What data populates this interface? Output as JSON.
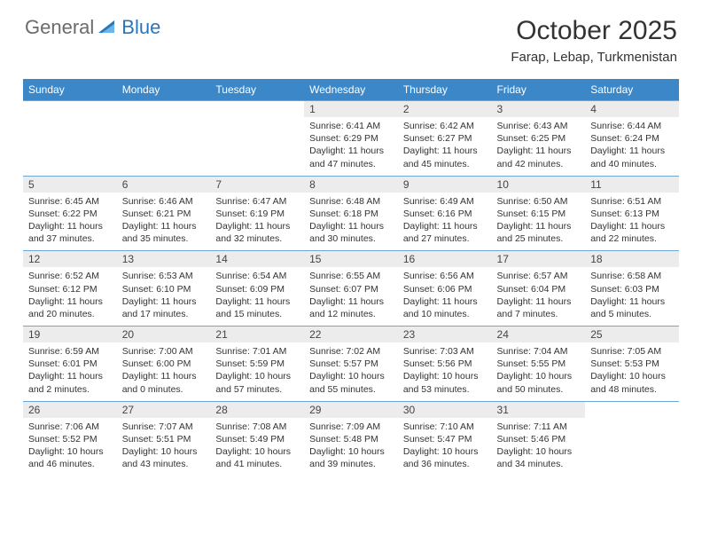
{
  "logo": {
    "text1": "General",
    "text2": "Blue"
  },
  "title": "October 2025",
  "location": "Farap, Lebap, Turkmenistan",
  "colors": {
    "header_bg": "#3b87c8",
    "daynum_bg": "#ececec",
    "row_border": "#6fa6d4",
    "logo_gray": "#6b6b6b",
    "logo_blue": "#2976bb"
  },
  "dayHeaders": [
    "Sunday",
    "Monday",
    "Tuesday",
    "Wednesday",
    "Thursday",
    "Friday",
    "Saturday"
  ],
  "weeks": [
    {
      "nums": [
        "",
        "",
        "",
        "1",
        "2",
        "3",
        "4"
      ],
      "cells": [
        null,
        null,
        null,
        {
          "sunrise": "Sunrise: 6:41 AM",
          "sunset": "Sunset: 6:29 PM",
          "day1": "Daylight: 11 hours",
          "day2": "and 47 minutes."
        },
        {
          "sunrise": "Sunrise: 6:42 AM",
          "sunset": "Sunset: 6:27 PM",
          "day1": "Daylight: 11 hours",
          "day2": "and 45 minutes."
        },
        {
          "sunrise": "Sunrise: 6:43 AM",
          "sunset": "Sunset: 6:25 PM",
          "day1": "Daylight: 11 hours",
          "day2": "and 42 minutes."
        },
        {
          "sunrise": "Sunrise: 6:44 AM",
          "sunset": "Sunset: 6:24 PM",
          "day1": "Daylight: 11 hours",
          "day2": "and 40 minutes."
        }
      ]
    },
    {
      "nums": [
        "5",
        "6",
        "7",
        "8",
        "9",
        "10",
        "11"
      ],
      "cells": [
        {
          "sunrise": "Sunrise: 6:45 AM",
          "sunset": "Sunset: 6:22 PM",
          "day1": "Daylight: 11 hours",
          "day2": "and 37 minutes."
        },
        {
          "sunrise": "Sunrise: 6:46 AM",
          "sunset": "Sunset: 6:21 PM",
          "day1": "Daylight: 11 hours",
          "day2": "and 35 minutes."
        },
        {
          "sunrise": "Sunrise: 6:47 AM",
          "sunset": "Sunset: 6:19 PM",
          "day1": "Daylight: 11 hours",
          "day2": "and 32 minutes."
        },
        {
          "sunrise": "Sunrise: 6:48 AM",
          "sunset": "Sunset: 6:18 PM",
          "day1": "Daylight: 11 hours",
          "day2": "and 30 minutes."
        },
        {
          "sunrise": "Sunrise: 6:49 AM",
          "sunset": "Sunset: 6:16 PM",
          "day1": "Daylight: 11 hours",
          "day2": "and 27 minutes."
        },
        {
          "sunrise": "Sunrise: 6:50 AM",
          "sunset": "Sunset: 6:15 PM",
          "day1": "Daylight: 11 hours",
          "day2": "and 25 minutes."
        },
        {
          "sunrise": "Sunrise: 6:51 AM",
          "sunset": "Sunset: 6:13 PM",
          "day1": "Daylight: 11 hours",
          "day2": "and 22 minutes."
        }
      ]
    },
    {
      "nums": [
        "12",
        "13",
        "14",
        "15",
        "16",
        "17",
        "18"
      ],
      "cells": [
        {
          "sunrise": "Sunrise: 6:52 AM",
          "sunset": "Sunset: 6:12 PM",
          "day1": "Daylight: 11 hours",
          "day2": "and 20 minutes."
        },
        {
          "sunrise": "Sunrise: 6:53 AM",
          "sunset": "Sunset: 6:10 PM",
          "day1": "Daylight: 11 hours",
          "day2": "and 17 minutes."
        },
        {
          "sunrise": "Sunrise: 6:54 AM",
          "sunset": "Sunset: 6:09 PM",
          "day1": "Daylight: 11 hours",
          "day2": "and 15 minutes."
        },
        {
          "sunrise": "Sunrise: 6:55 AM",
          "sunset": "Sunset: 6:07 PM",
          "day1": "Daylight: 11 hours",
          "day2": "and 12 minutes."
        },
        {
          "sunrise": "Sunrise: 6:56 AM",
          "sunset": "Sunset: 6:06 PM",
          "day1": "Daylight: 11 hours",
          "day2": "and 10 minutes."
        },
        {
          "sunrise": "Sunrise: 6:57 AM",
          "sunset": "Sunset: 6:04 PM",
          "day1": "Daylight: 11 hours",
          "day2": "and 7 minutes."
        },
        {
          "sunrise": "Sunrise: 6:58 AM",
          "sunset": "Sunset: 6:03 PM",
          "day1": "Daylight: 11 hours",
          "day2": "and 5 minutes."
        }
      ]
    },
    {
      "nums": [
        "19",
        "20",
        "21",
        "22",
        "23",
        "24",
        "25"
      ],
      "cells": [
        {
          "sunrise": "Sunrise: 6:59 AM",
          "sunset": "Sunset: 6:01 PM",
          "day1": "Daylight: 11 hours",
          "day2": "and 2 minutes."
        },
        {
          "sunrise": "Sunrise: 7:00 AM",
          "sunset": "Sunset: 6:00 PM",
          "day1": "Daylight: 11 hours",
          "day2": "and 0 minutes."
        },
        {
          "sunrise": "Sunrise: 7:01 AM",
          "sunset": "Sunset: 5:59 PM",
          "day1": "Daylight: 10 hours",
          "day2": "and 57 minutes."
        },
        {
          "sunrise": "Sunrise: 7:02 AM",
          "sunset": "Sunset: 5:57 PM",
          "day1": "Daylight: 10 hours",
          "day2": "and 55 minutes."
        },
        {
          "sunrise": "Sunrise: 7:03 AM",
          "sunset": "Sunset: 5:56 PM",
          "day1": "Daylight: 10 hours",
          "day2": "and 53 minutes."
        },
        {
          "sunrise": "Sunrise: 7:04 AM",
          "sunset": "Sunset: 5:55 PM",
          "day1": "Daylight: 10 hours",
          "day2": "and 50 minutes."
        },
        {
          "sunrise": "Sunrise: 7:05 AM",
          "sunset": "Sunset: 5:53 PM",
          "day1": "Daylight: 10 hours",
          "day2": "and 48 minutes."
        }
      ]
    },
    {
      "nums": [
        "26",
        "27",
        "28",
        "29",
        "30",
        "31",
        ""
      ],
      "cells": [
        {
          "sunrise": "Sunrise: 7:06 AM",
          "sunset": "Sunset: 5:52 PM",
          "day1": "Daylight: 10 hours",
          "day2": "and 46 minutes."
        },
        {
          "sunrise": "Sunrise: 7:07 AM",
          "sunset": "Sunset: 5:51 PM",
          "day1": "Daylight: 10 hours",
          "day2": "and 43 minutes."
        },
        {
          "sunrise": "Sunrise: 7:08 AM",
          "sunset": "Sunset: 5:49 PM",
          "day1": "Daylight: 10 hours",
          "day2": "and 41 minutes."
        },
        {
          "sunrise": "Sunrise: 7:09 AM",
          "sunset": "Sunset: 5:48 PM",
          "day1": "Daylight: 10 hours",
          "day2": "and 39 minutes."
        },
        {
          "sunrise": "Sunrise: 7:10 AM",
          "sunset": "Sunset: 5:47 PM",
          "day1": "Daylight: 10 hours",
          "day2": "and 36 minutes."
        },
        {
          "sunrise": "Sunrise: 7:11 AM",
          "sunset": "Sunset: 5:46 PM",
          "day1": "Daylight: 10 hours",
          "day2": "and 34 minutes."
        },
        null
      ]
    }
  ]
}
